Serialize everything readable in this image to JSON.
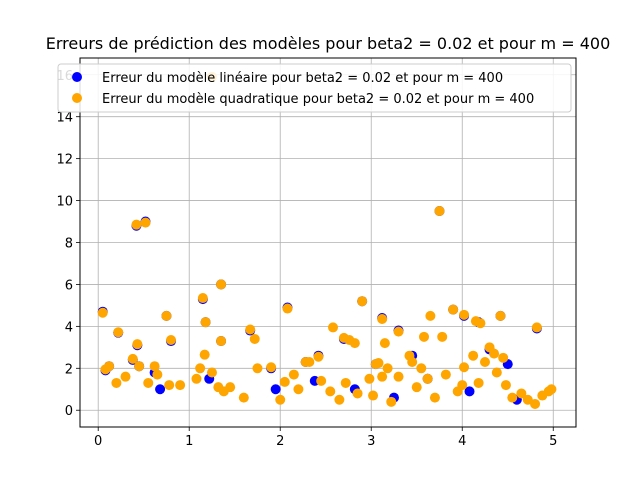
{
  "chart_data": {
    "type": "scatter",
    "title": "Erreurs de prédiction des modèles pour beta2 = 0.02 et pour m = 400",
    "xlabel": "",
    "ylabel": "",
    "xlim": [
      -0.2,
      5.25
    ],
    "ylim": [
      -0.8,
      16.8
    ],
    "xticks": [
      0,
      1,
      2,
      3,
      4,
      5
    ],
    "yticks": [
      0,
      2,
      4,
      6,
      8,
      10,
      12,
      14,
      16
    ],
    "grid": true,
    "legend_position": "top-right",
    "series": [
      {
        "name": "Erreur du modèle linéaire pour beta2 = 0.02 et pour m = 400",
        "color": "#0000ff",
        "points": [
          [
            0.05,
            4.7
          ],
          [
            0.42,
            8.8
          ],
          [
            0.52,
            9.0
          ],
          [
            0.22,
            3.7
          ],
          [
            0.43,
            3.1
          ],
          [
            0.75,
            4.5
          ],
          [
            0.8,
            3.3
          ],
          [
            1.15,
            5.3
          ],
          [
            1.18,
            4.2
          ],
          [
            1.35,
            6.0
          ],
          [
            1.35,
            3.3
          ],
          [
            1.67,
            3.8
          ],
          [
            2.08,
            4.9
          ],
          [
            2.42,
            2.6
          ],
          [
            2.7,
            3.4
          ],
          [
            2.9,
            5.2
          ],
          [
            3.12,
            4.4
          ],
          [
            3.3,
            3.8
          ],
          [
            3.75,
            9.5
          ],
          [
            3.9,
            4.8
          ],
          [
            4.02,
            4.5
          ],
          [
            4.18,
            4.2
          ],
          [
            4.42,
            4.5
          ],
          [
            4.82,
            3.9
          ],
          [
            0.08,
            1.9
          ],
          [
            0.12,
            2.1
          ],
          [
            0.38,
            2.4
          ],
          [
            0.62,
            1.8
          ],
          [
            1.9,
            2.0
          ],
          [
            2.28,
            2.3
          ],
          [
            3.05,
            2.2
          ],
          [
            3.45,
            2.6
          ],
          [
            4.3,
            2.9
          ],
          [
            4.5,
            2.2
          ],
          [
            0.45,
            2.1
          ],
          [
            0.68,
            1.0
          ],
          [
            1.22,
            1.5
          ],
          [
            1.95,
            1.0
          ],
          [
            2.38,
            1.4
          ],
          [
            2.82,
            1.0
          ],
          [
            3.25,
            0.6
          ],
          [
            3.62,
            1.5
          ],
          [
            4.08,
            0.9
          ],
          [
            4.6,
            0.5
          ]
        ]
      },
      {
        "name": "Erreur du modèle quadratique pour beta2 = 0.02 et pour m = 400",
        "color": "#ffa500",
        "points": [
          [
            0.05,
            4.65
          ],
          [
            0.42,
            8.85
          ],
          [
            0.52,
            8.95
          ],
          [
            0.22,
            3.72
          ],
          [
            0.43,
            3.15
          ],
          [
            0.75,
            4.5
          ],
          [
            0.8,
            3.35
          ],
          [
            1.15,
            5.35
          ],
          [
            1.18,
            4.2
          ],
          [
            1.25,
            15.9
          ],
          [
            1.35,
            6.0
          ],
          [
            1.35,
            3.3
          ],
          [
            1.67,
            3.85
          ],
          [
            1.72,
            3.4
          ],
          [
            2.08,
            4.85
          ],
          [
            2.42,
            2.55
          ],
          [
            2.58,
            3.95
          ],
          [
            2.7,
            3.45
          ],
          [
            2.76,
            3.35
          ],
          [
            2.82,
            3.2
          ],
          [
            2.9,
            5.2
          ],
          [
            3.12,
            4.35
          ],
          [
            3.15,
            3.2
          ],
          [
            3.3,
            3.75
          ],
          [
            3.58,
            3.5
          ],
          [
            3.65,
            4.5
          ],
          [
            3.75,
            9.5
          ],
          [
            3.78,
            3.5
          ],
          [
            3.9,
            4.8
          ],
          [
            4.02,
            4.55
          ],
          [
            4.15,
            4.25
          ],
          [
            4.2,
            4.15
          ],
          [
            4.42,
            4.5
          ],
          [
            4.82,
            3.95
          ],
          [
            0.08,
            1.95
          ],
          [
            0.12,
            2.1
          ],
          [
            0.2,
            1.3
          ],
          [
            0.3,
            1.6
          ],
          [
            0.38,
            2.45
          ],
          [
            0.45,
            2.1
          ],
          [
            0.55,
            1.3
          ],
          [
            0.62,
            2.1
          ],
          [
            0.65,
            1.7
          ],
          [
            0.78,
            1.2
          ],
          [
            0.9,
            1.2
          ],
          [
            1.08,
            1.5
          ],
          [
            1.12,
            2.0
          ],
          [
            1.17,
            2.65
          ],
          [
            1.25,
            1.8
          ],
          [
            1.32,
            1.1
          ],
          [
            1.38,
            0.9
          ],
          [
            1.45,
            1.1
          ],
          [
            1.6,
            0.6
          ],
          [
            1.75,
            2.0
          ],
          [
            1.9,
            2.05
          ],
          [
            2.0,
            0.5
          ],
          [
            2.05,
            1.35
          ],
          [
            2.15,
            1.7
          ],
          [
            2.2,
            1.0
          ],
          [
            2.28,
            2.3
          ],
          [
            2.32,
            2.3
          ],
          [
            2.45,
            1.4
          ],
          [
            2.55,
            0.9
          ],
          [
            2.65,
            0.5
          ],
          [
            2.72,
            1.3
          ],
          [
            2.85,
            0.8
          ],
          [
            2.98,
            1.5
          ],
          [
            3.02,
            0.7
          ],
          [
            3.05,
            2.2
          ],
          [
            3.08,
            2.25
          ],
          [
            3.12,
            1.6
          ],
          [
            3.18,
            2.0
          ],
          [
            3.22,
            0.4
          ],
          [
            3.3,
            1.6
          ],
          [
            3.42,
            2.6
          ],
          [
            3.45,
            2.3
          ],
          [
            3.5,
            1.1
          ],
          [
            3.55,
            2.0
          ],
          [
            3.62,
            1.5
          ],
          [
            3.7,
            0.6
          ],
          [
            3.82,
            1.7
          ],
          [
            3.95,
            0.9
          ],
          [
            4.0,
            1.2
          ],
          [
            4.02,
            2.05
          ],
          [
            4.12,
            2.6
          ],
          [
            4.18,
            1.3
          ],
          [
            4.25,
            2.3
          ],
          [
            4.3,
            3.0
          ],
          [
            4.35,
            2.7
          ],
          [
            4.38,
            1.8
          ],
          [
            4.45,
            2.5
          ],
          [
            4.48,
            1.2
          ],
          [
            4.55,
            0.6
          ],
          [
            4.65,
            0.8
          ],
          [
            4.72,
            0.5
          ],
          [
            4.8,
            0.3
          ],
          [
            4.88,
            0.7
          ],
          [
            4.95,
            0.9
          ],
          [
            4.98,
            1.0
          ]
        ]
      }
    ]
  }
}
